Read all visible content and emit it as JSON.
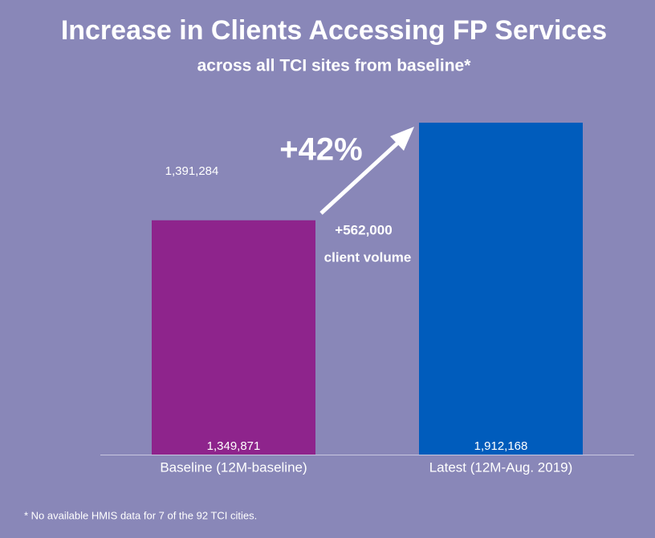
{
  "chart_data": {
    "type": "bar",
    "title": "Increase in Clients Accessing FP Services",
    "subtitle": "across all TCI sites from baseline*",
    "categories": [
      "Baseline (12M-baseline)",
      "Latest (12M-Aug. 2019)"
    ],
    "values": [
      1349871,
      1912168
    ],
    "value_labels": [
      "1,349,871",
      "1,912,168"
    ],
    "colors": [
      "#8e248c",
      "#005cbc"
    ],
    "ylim": [
      0,
      2000000
    ],
    "annotations": [
      "1,391,284",
      "+42%",
      "+562,000",
      "client volume"
    ],
    "footnote": "*  No available HMIS data for  7 of the 92 TCI cities."
  }
}
